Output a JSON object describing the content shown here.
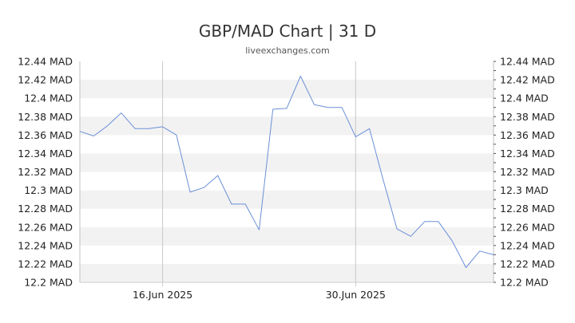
{
  "chart_data": {
    "type": "line",
    "title": "GBP/MAD Chart | 31 D",
    "subtitle": "liveexchanges.com",
    "xlabel": "",
    "ylabel": "",
    "ylim": [
      12.2,
      12.44
    ],
    "y_ticks": [
      12.44,
      12.42,
      12.4,
      12.38,
      12.36,
      12.34,
      12.32,
      12.3,
      12.28,
      12.26,
      12.24,
      12.22,
      12.2
    ],
    "y_tick_labels": [
      "12.44 MAD",
      "12.42 MAD",
      "12.4 MAD",
      "12.38 MAD",
      "12.36 MAD",
      "12.34 MAD",
      "12.32 MAD",
      "12.3 MAD",
      "12.28 MAD",
      "12.26 MAD",
      "12.24 MAD",
      "12.22 MAD",
      "12.2 MAD"
    ],
    "x_range": [
      "2025-06-10",
      "2025-07-10"
    ],
    "x_ticks": [
      {
        "date": "2025-06-16",
        "label": "16.Jun 2025"
      },
      {
        "date": "2025-06-30",
        "label": "30.Jun 2025"
      }
    ],
    "grid": "horizontal bands, vertical lines at x ticks",
    "axes": "left and right",
    "series": [
      {
        "color": "#6a8fd8",
        "x": [
          "2025-06-10",
          "2025-06-11",
          "2025-06-12",
          "2025-06-13",
          "2025-06-14",
          "2025-06-15",
          "2025-06-16",
          "2025-06-17",
          "2025-06-18",
          "2025-06-19",
          "2025-06-20",
          "2025-06-21",
          "2025-06-22",
          "2025-06-23",
          "2025-06-24",
          "2025-06-25",
          "2025-06-26",
          "2025-06-27",
          "2025-06-28",
          "2025-06-29",
          "2025-06-30",
          "2025-07-01",
          "2025-07-02",
          "2025-07-03",
          "2025-07-04",
          "2025-07-05",
          "2025-07-06",
          "2025-07-07",
          "2025-07-08",
          "2025-07-09",
          "2025-07-10"
        ],
        "values": [
          12.364,
          12.359,
          12.37,
          12.384,
          12.367,
          12.367,
          12.369,
          12.36,
          12.298,
          12.303,
          12.316,
          12.285,
          12.285,
          12.257,
          12.388,
          12.389,
          12.424,
          12.393,
          12.39,
          12.39,
          12.358,
          12.367,
          12.311,
          12.258,
          12.25,
          12.266,
          12.266,
          12.245,
          12.216,
          12.234,
          12.23
        ]
      }
    ]
  }
}
